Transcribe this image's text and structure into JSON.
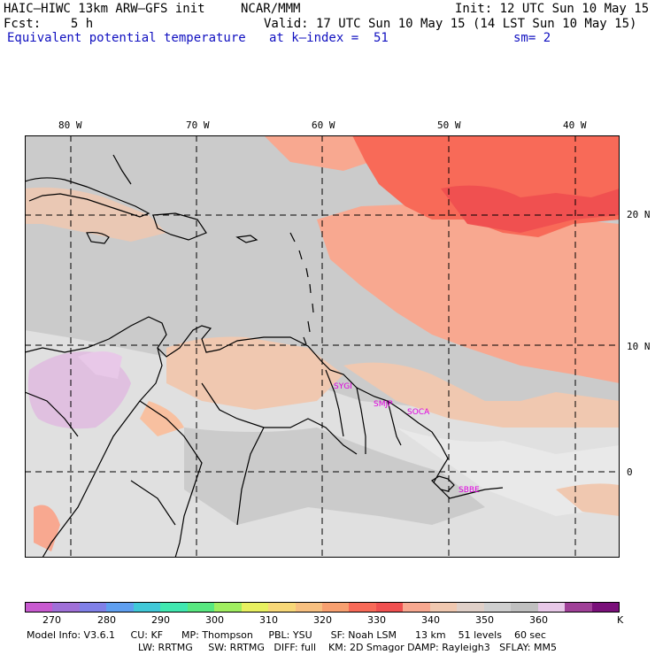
{
  "header": {
    "model": "HAIC–HIWC 13km ARW–GFS init",
    "org": "NCAR/MMM",
    "init": "Init: 12 UTC Sun 10 May 15",
    "fcst": "Fcst:    5 h",
    "valid": "Valid: 17 UTC Sun 10 May 15 (14 LST Sun 10 May 15)",
    "field": "Equivalent potential temperature",
    "level": "at k–index =  51",
    "smooth": "sm= 2"
  },
  "map": {
    "lon_labels": [
      "80 W",
      "70 W",
      "60 W",
      "50 W",
      "40 W"
    ],
    "lat_labels": [
      "20 N",
      "10 N",
      "0"
    ],
    "stations": [
      "SYGI",
      "SMJP",
      "SOCA",
      "SBBE"
    ]
  },
  "colorbar": {
    "colors": [
      "#c85ad0",
      "#a070d8",
      "#8080e8",
      "#5f9ff0",
      "#40c8d8",
      "#40e8b0",
      "#58e880",
      "#a0ee60",
      "#e8f060",
      "#f8d878",
      "#f8c080",
      "#f8a070",
      "#f86a58",
      "#f05050",
      "#f8a890",
      "#f0c8b0",
      "#e0d0c8",
      "#cfcfcf",
      "#c0c0c0",
      "#e8c8e8",
      "#a04098",
      "#7a107a"
    ],
    "ticks": [
      "270",
      "280",
      "290",
      "300",
      "310",
      "320",
      "330",
      "340",
      "350",
      "360",
      "K"
    ]
  },
  "footer": {
    "line1": "Model Info: V3.6.1     CU: KF      MP: Thompson     PBL: YSU      SF: Noah LSM      13 km    51 levels    60 sec",
    "line2": "LW: RRTMG     SW: RRTMG   DIFF: full    KM: 2D Smagor DAMP: Rayleigh3   SFLAY: MM5"
  }
}
